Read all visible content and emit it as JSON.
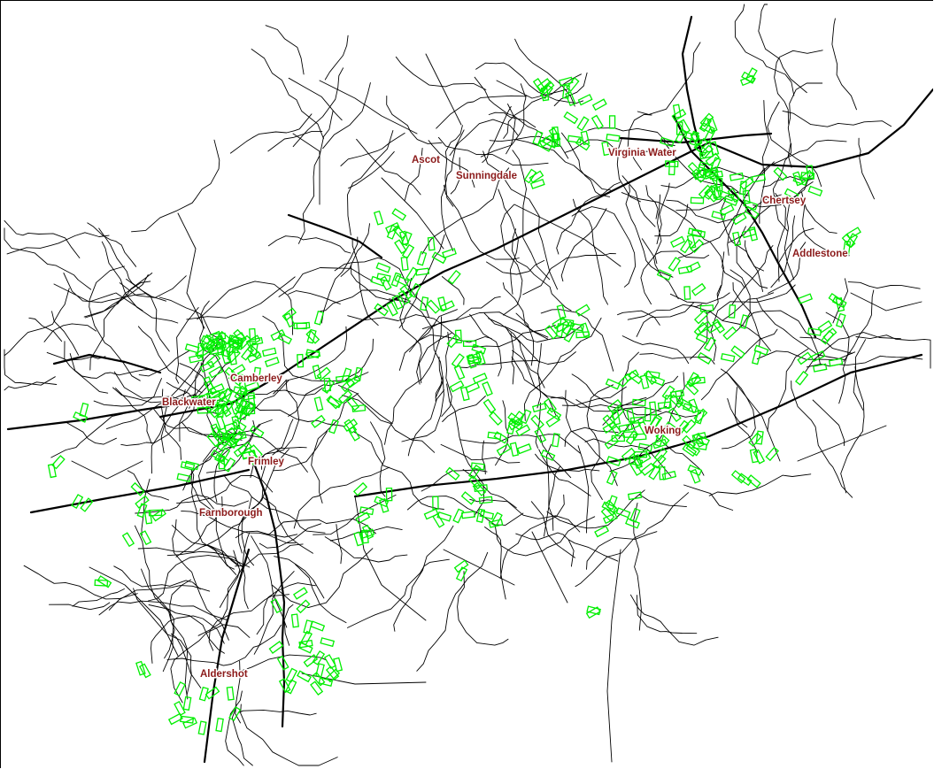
{
  "map": {
    "road_color": "#000000",
    "label_color": "#8b1a1a",
    "marker_color": "#00ee00",
    "marker_shape": "rectangle-outline",
    "towns": [
      {
        "id": "ascot",
        "name": "Ascot"
      },
      {
        "id": "sunningdale",
        "name": "Sunningdale"
      },
      {
        "id": "virginia-water",
        "name": "Virginia Water"
      },
      {
        "id": "chertsey",
        "name": "Chertsey"
      },
      {
        "id": "addlestone",
        "name": "Addlestone"
      },
      {
        "id": "camberley",
        "name": "Camberley"
      },
      {
        "id": "blackwater",
        "name": "Blackwater"
      },
      {
        "id": "frimley",
        "name": "Frimley"
      },
      {
        "id": "farnborough",
        "name": "Farnborough"
      },
      {
        "id": "woking",
        "name": "Woking"
      },
      {
        "id": "aldershot",
        "name": "Aldershot"
      }
    ]
  }
}
